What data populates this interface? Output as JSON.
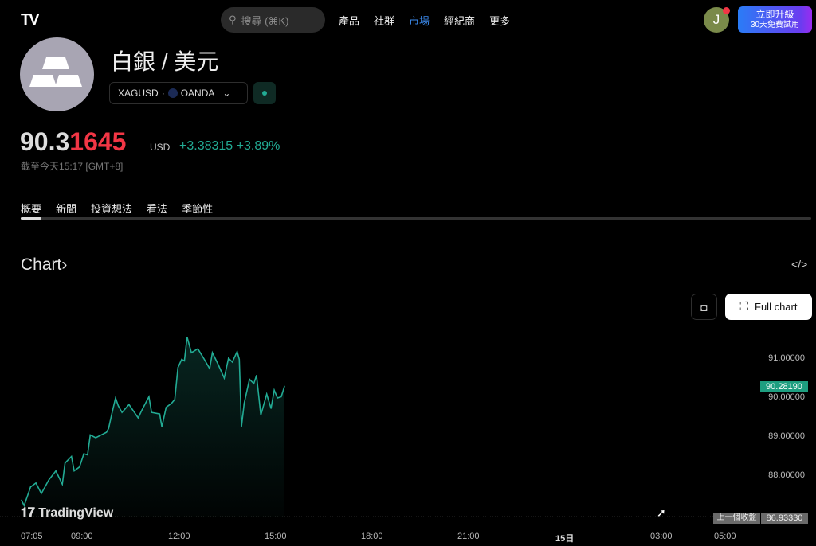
{
  "header": {
    "logo": "TV",
    "search_placeholder": "搜尋 (⌘K)",
    "nav": [
      "產品",
      "社群",
      "市場",
      "經紀商",
      "更多"
    ],
    "active_nav": "市場",
    "avatar_letter": "J",
    "upgrade_label": "立即升級",
    "upgrade_sub": "30天免費試用"
  },
  "symbol": {
    "title": "白銀 / 美元",
    "ticker": "XAGUSD",
    "sep": "·",
    "exchange": "OANDA",
    "price_main": "90.3",
    "price_tail": "1645",
    "currency": "USD",
    "change": "+3.38315",
    "change_pct": "+3.89%",
    "as_of": "截至今天15:17 [GMT+8]"
  },
  "tabs": [
    "概要",
    "新聞",
    "投資想法",
    "看法",
    "季節性"
  ],
  "chart_section": {
    "title": "Chart",
    "chevron": "›",
    "embed_icon": "</>",
    "full_chart_label": "Full chart",
    "watermark": "TradingView"
  },
  "colors": {
    "line": "#22ab94",
    "up": "#22ab94",
    "down": "#f23645",
    "accent": "#3c8cf0"
  },
  "chart_data": {
    "type": "area",
    "x": [
      "07:08",
      "07:13",
      "07:25",
      "07:35",
      "07:45",
      "07:59",
      "08:12",
      "08:24",
      "08:29",
      "08:41",
      "08:46",
      "08:56",
      "09:04",
      "09:11",
      "09:16",
      "09:26",
      "09:46",
      "09:50",
      "09:56",
      "10:03",
      "10:08",
      "10:15",
      "10:28",
      "10:45",
      "10:52",
      "11:05",
      "11:10",
      "11:25",
      "11:29",
      "11:37",
      "11:47",
      "11:53",
      "11:59",
      "12:06",
      "12:11",
      "12:16",
      "12:24",
      "12:36",
      "12:48",
      "12:58",
      "13:03",
      "13:13",
      "13:25",
      "13:33",
      "13:40",
      "13:49",
      "13:53",
      "13:57",
      "14:02",
      "14:12",
      "14:20",
      "14:25",
      "14:33",
      "14:44",
      "14:52",
      "14:58",
      "15:04",
      "15:11",
      "15:17"
    ],
    "values": [
      87.36,
      87.22,
      87.7,
      87.8,
      87.53,
      87.88,
      88.11,
      87.77,
      88.31,
      88.48,
      88.11,
      88.21,
      88.55,
      88.52,
      89.03,
      88.96,
      89.1,
      89.2,
      89.57,
      89.98,
      89.78,
      89.61,
      89.81,
      89.47,
      89.67,
      90.01,
      89.61,
      89.57,
      89.24,
      89.74,
      89.84,
      89.94,
      90.76,
      90.97,
      90.93,
      91.54,
      91.14,
      91.24,
      90.97,
      90.73,
      91.14,
      90.86,
      90.49,
      91.0,
      90.9,
      91.17,
      90.97,
      89.24,
      89.84,
      90.46,
      90.35,
      90.56,
      89.54,
      90.08,
      89.71,
      90.18,
      89.98,
      90.01,
      90.28
    ],
    "y_ticks": [
      "91.00000",
      "90.00000",
      "89.00000",
      "88.00000"
    ],
    "x_ticks": [
      "07:05",
      "09:00",
      "12:00",
      "15:00",
      "18:00",
      "21:00",
      "15日",
      "03:00",
      "05:00"
    ],
    "last_price": "90.28190",
    "prev_close_label": "上一個收盤",
    "prev_close": "86.93330",
    "ylim": [
      86.9,
      91.6
    ]
  }
}
